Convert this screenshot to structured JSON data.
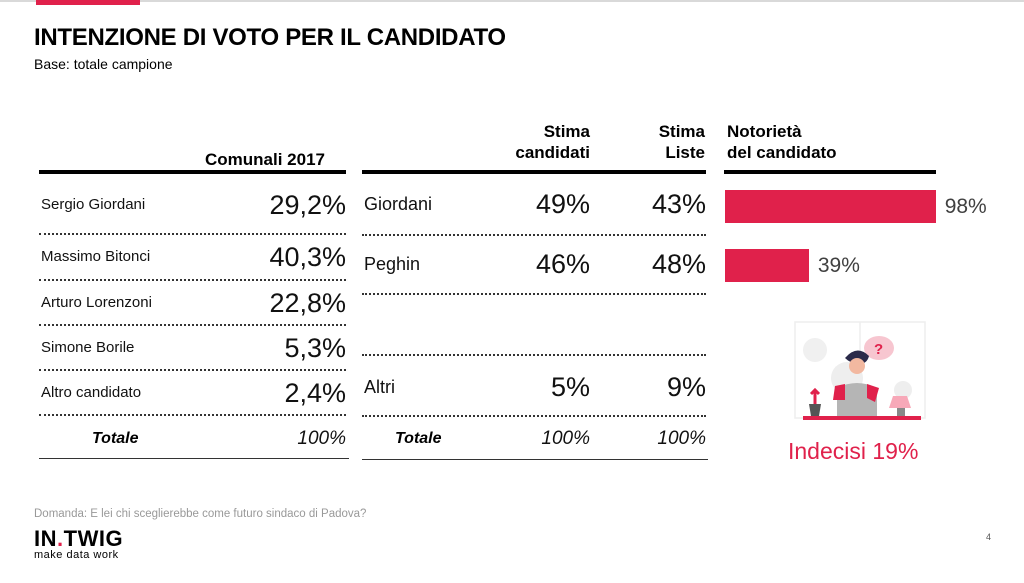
{
  "title": "INTENZIONE DI VOTO PER IL CANDIDATO",
  "subtitle": "Base: totale campione",
  "colors": {
    "accent": "#e0214b",
    "text": "#111111",
    "muted": "#999999"
  },
  "table_2017": {
    "header": "Comunali 2017",
    "rows": [
      {
        "name": "Sergio Giordani",
        "value": "29,2%"
      },
      {
        "name": "Massimo Bitonci",
        "value": "40,3%"
      },
      {
        "name": "Arturo Lorenzoni",
        "value": "22,8%"
      },
      {
        "name": "Simone Borile",
        "value": "5,3%"
      },
      {
        "name": "Altro candidato",
        "value": "2,4%"
      }
    ],
    "total_label": "Totale",
    "total_value": "100%"
  },
  "table_stima": {
    "header_candidati": [
      "Stima",
      "candidati"
    ],
    "header_liste": [
      "Stima",
      "Liste"
    ],
    "rows": [
      {
        "name": "Giordani",
        "candidati": "49%",
        "liste": "43%"
      },
      {
        "name": "Peghin",
        "candidati": "46%",
        "liste": "48%"
      },
      {
        "name": "",
        "candidati": "",
        "liste": ""
      },
      {
        "name": "Altri",
        "candidati": "5%",
        "liste": "9%"
      }
    ],
    "total_label": "Totale",
    "total_candidati": "100%",
    "total_liste": "100%"
  },
  "notorieta": {
    "header": [
      "Notorietà",
      "del candidato"
    ]
  },
  "chart_data": {
    "type": "bar",
    "orientation": "horizontal",
    "title": "Notorietà del candidato",
    "categories": [
      "Giordani",
      "Peghin"
    ],
    "values": [
      98,
      39
    ],
    "labels": [
      "98%",
      "39%"
    ],
    "xlim": [
      0,
      100
    ],
    "grid": false,
    "legend": "none"
  },
  "indecisi": "Indecisi 19%",
  "illustration": "thinking-person-icon",
  "question": "Domanda: E lei chi sceglierebbe come futuro sindaco di Padova?",
  "logo": {
    "part1": "IN",
    "dot": ".",
    "part2": "TWIG",
    "tagline": "make data work"
  },
  "page_number": "4"
}
